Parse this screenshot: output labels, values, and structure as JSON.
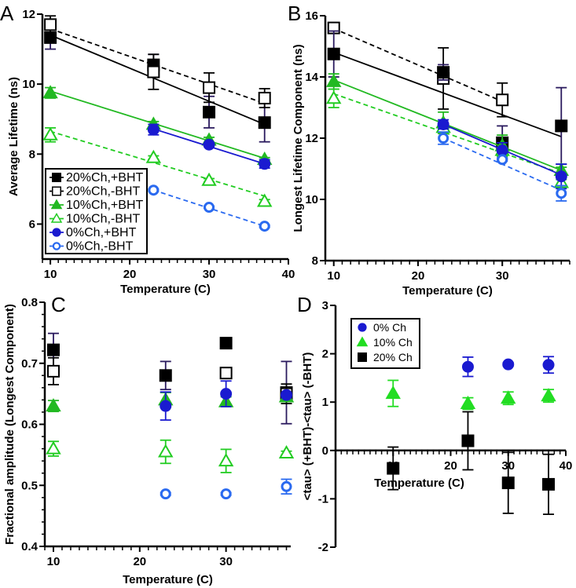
{
  "styles": {
    "20%Ch,+BHT": {
      "color": "#000000",
      "err": "#2a1a5e",
      "marker": "square",
      "filled": true,
      "dash": false
    },
    "20%Ch,-BHT": {
      "color": "#000000",
      "err": "#000000",
      "marker": "square",
      "filled": false,
      "dash": true
    },
    "10%Ch,+BHT": {
      "color": "#22b922",
      "err": "#22b922",
      "marker": "triangle",
      "filled": true,
      "dash": false
    },
    "10%Ch,-BHT": {
      "color": "#22cc22",
      "err": "#22cc22",
      "marker": "triangle",
      "filled": false,
      "dash": true
    },
    "0%Ch,+BHT": {
      "color": "#1a1ad0",
      "err": "#1a1ad0",
      "marker": "circle",
      "filled": true,
      "dash": false
    },
    "0%Ch,-BHT": {
      "color": "#2a6af0",
      "err": "#2a6af0",
      "marker": "circle",
      "filled": false,
      "dash": true
    },
    "0% Ch": {
      "color": "#1a1ad0",
      "err": "#1a1ad0",
      "marker": "circle",
      "filled": true
    },
    "10% Ch": {
      "color": "#22dd22",
      "err": "#22dd22",
      "marker": "triangle",
      "filled": true
    },
    "20% Ch": {
      "color": "#000000",
      "err": "#000000",
      "marker": "square",
      "filled": true
    }
  },
  "chart_data": [
    {
      "type": "scatter",
      "panel_label": "A",
      "xlabel": "Temperature (C)",
      "ylabel": "Average Lifetime (ns)",
      "xlim": [
        9,
        40
      ],
      "ylim": [
        5,
        12
      ],
      "xticks": [
        10,
        20,
        30,
        40
      ],
      "yticks": [
        6,
        8,
        10,
        12
      ],
      "legend": "bottom-left",
      "grid": false,
      "series": [
        {
          "name": "20%Ch,+BHT",
          "style": "20%Ch,+BHT",
          "x": [
            10,
            23,
            30,
            37
          ],
          "y": [
            11.33,
            10.55,
            9.2,
            8.9
          ],
          "err": [
            0.33,
            0.3,
            0.45,
            0.55
          ],
          "fit": {
            "x": [
              10,
              37
            ],
            "y": [
              11.4,
              8.85
            ]
          }
        },
        {
          "name": "20%Ch,-BHT",
          "style": "20%Ch,-BHT",
          "x": [
            10,
            23,
            30,
            37
          ],
          "y": [
            11.7,
            10.35,
            9.9,
            9.6
          ],
          "err": [
            0.25,
            0.5,
            0.42,
            0.27
          ],
          "fit": {
            "x": [
              10,
              37
            ],
            "y": [
              11.58,
              9.45
            ]
          }
        },
        {
          "name": "10%Ch,+BHT",
          "style": "10%Ch,+BHT",
          "x": [
            10,
            23,
            30,
            37
          ],
          "y": [
            9.75,
            8.85,
            8.4,
            7.85
          ],
          "err": [
            0.15,
            0.08,
            0.08,
            0.05
          ],
          "fit": {
            "x": [
              10,
              37
            ],
            "y": [
              9.8,
              7.88
            ]
          }
        },
        {
          "name": "10%Ch,-BHT",
          "style": "10%Ch,-BHT",
          "x": [
            10,
            23,
            30,
            37
          ],
          "y": [
            8.55,
            7.9,
            7.25,
            6.65
          ],
          "err": [
            0.2,
            0.05,
            0.05,
            0.05
          ],
          "fit": {
            "x": [
              10,
              37
            ],
            "y": [
              8.65,
              6.8
            ]
          }
        },
        {
          "name": "0%Ch,+BHT",
          "style": "0%Ch,+BHT",
          "x": [
            23,
            30,
            37
          ],
          "y": [
            8.7,
            8.27,
            7.72
          ],
          "err": [
            0.15,
            0.05,
            0.12
          ],
          "fit": {
            "x": [
              23,
              37
            ],
            "y": [
              8.72,
              7.72
            ]
          }
        },
        {
          "name": "0%Ch,-BHT",
          "style": "0%Ch,-BHT",
          "x": [
            23,
            30,
            37
          ],
          "y": [
            6.97,
            6.48,
            5.94
          ],
          "err": [
            0.03,
            0.03,
            0.03
          ],
          "fit": {
            "x": [
              23,
              37
            ],
            "y": [
              6.97,
              5.94
            ]
          }
        }
      ]
    },
    {
      "type": "scatter",
      "panel_label": "B",
      "xlabel": "Temperature (C)",
      "ylabel": "Longest Lifetime Component (ns)",
      "xlim": [
        9,
        38
      ],
      "ylim": [
        8,
        16
      ],
      "xticks": [
        10,
        20,
        30
      ],
      "yticks": [
        8,
        10,
        12,
        14,
        16
      ],
      "grid": false,
      "series": [
        {
          "style": "20%Ch,-BHT",
          "x": [
            10,
            23,
            30
          ],
          "y": [
            15.6,
            13.95,
            13.25
          ],
          "err": [
            0.05,
            1.0,
            0.55
          ],
          "fit": {
            "x": [
              10,
              30
            ],
            "y": [
              15.58,
              13.2
            ]
          }
        },
        {
          "style": "20%Ch,+BHT",
          "x": [
            10,
            23,
            30,
            37
          ],
          "y": [
            14.75,
            14.15,
            11.85,
            12.4
          ],
          "err": [
            0.75,
            0.25,
            0.55,
            1.25
          ],
          "fit": {
            "x": [
              10,
              37
            ],
            "y": [
              14.8,
              12.05
            ]
          }
        },
        {
          "style": "10%Ch,+BHT",
          "x": [
            10,
            23,
            30,
            37
          ],
          "y": [
            13.85,
            12.5,
            11.75,
            10.95
          ],
          "err": [
            0.25,
            0.35,
            0.35,
            0.1
          ],
          "fit": {
            "x": [
              10,
              37
            ],
            "y": [
              13.9,
              10.95
            ]
          }
        },
        {
          "style": "10%Ch,-BHT",
          "x": [
            10,
            23,
            30,
            37
          ],
          "y": [
            13.3,
            12.35,
            11.6,
            10.55
          ],
          "err": [
            0.3,
            0.1,
            0.1,
            0.1
          ],
          "fit": {
            "x": [
              10,
              37
            ],
            "y": [
              13.45,
              10.85
            ]
          }
        },
        {
          "style": "0%Ch,+BHT",
          "x": [
            23,
            30,
            37
          ],
          "y": [
            12.45,
            11.6,
            10.75
          ],
          "err": [
            0.15,
            0.25,
            0.4
          ],
          "fit": {
            "x": [
              23,
              37
            ],
            "y": [
              12.45,
              10.8
            ]
          }
        },
        {
          "style": "0%Ch,-BHT",
          "x": [
            23,
            30,
            37
          ],
          "y": [
            12.0,
            11.3,
            10.2
          ],
          "err": [
            0.2,
            0.05,
            0.25
          ],
          "fit": {
            "x": [
              23,
              37
            ],
            "y": [
              12.0,
              10.3
            ]
          }
        }
      ]
    },
    {
      "type": "scatter",
      "panel_label": "C",
      "xlabel": "Temperature (C)",
      "ylabel": "Fractional amplitude (Longest Component)",
      "xlim": [
        9,
        37.5
      ],
      "ylim": [
        0.4,
        0.8
      ],
      "xticks": [
        10,
        20,
        30
      ],
      "yticks": [
        0.4,
        0.5,
        0.6,
        0.7,
        0.8
      ],
      "grid": false,
      "series": [
        {
          "style": "20%Ch,+BHT",
          "x": [
            10,
            23,
            30,
            37
          ],
          "y": [
            0.722,
            0.68,
            0.733,
            0.652
          ],
          "err": [
            0.027,
            0.023,
            0.004,
            0.051
          ]
        },
        {
          "style": "20%Ch,-BHT",
          "x": [
            10,
            30,
            37
          ],
          "y": [
            0.687,
            0.684,
            0.65
          ],
          "err": [
            0.022,
            0.003,
            0.016
          ]
        },
        {
          "style": "10%Ch,+BHT",
          "x": [
            10,
            23,
            30,
            37
          ],
          "y": [
            0.63,
            0.64,
            0.637,
            0.645
          ],
          "err": [
            0.009,
            0.012,
            0.008,
            0.004
          ]
        },
        {
          "style": "10%Ch,-BHT",
          "x": [
            10,
            23,
            30,
            37
          ],
          "y": [
            0.56,
            0.555,
            0.54,
            0.553
          ],
          "err": [
            0.012,
            0.019,
            0.019,
            0.003
          ]
        },
        {
          "style": "0%Ch,+BHT",
          "x": [
            23,
            30,
            37
          ],
          "y": [
            0.63,
            0.65,
            0.648
          ],
          "err": [
            0.023,
            0.021,
            0.004
          ]
        },
        {
          "style": "0%Ch,-BHT",
          "x": [
            23,
            30,
            37
          ],
          "y": [
            0.486,
            0.486,
            0.498
          ],
          "err": [
            0.002,
            0.002,
            0.012
          ]
        }
      ]
    },
    {
      "type": "scatter",
      "panel_label": "D",
      "xlabel": "Temperature (C)",
      "ylabel": "<tau> (+BHT)-<tau> (-BHT)",
      "xlim": [
        0,
        40
      ],
      "ylim": [
        -2,
        3
      ],
      "xticks": [
        10,
        20,
        30,
        40
      ],
      "yticks": [
        -2,
        -1,
        0,
        1,
        2,
        3
      ],
      "legend": "top-left",
      "grid": false,
      "series": [
        {
          "name": "0% Ch",
          "style": "0% Ch",
          "x": [
            23,
            30,
            37
          ],
          "y": [
            1.73,
            1.78,
            1.77
          ],
          "err": [
            0.2,
            0.03,
            0.17
          ]
        },
        {
          "name": "10% Ch",
          "style": "10% Ch",
          "x": [
            10,
            23,
            30,
            37
          ],
          "y": [
            1.18,
            0.97,
            1.08,
            1.13
          ],
          "err": [
            0.27,
            0.12,
            0.13,
            0.13
          ]
        },
        {
          "name": "20% Ch",
          "style": "20% Ch",
          "x": [
            10,
            23,
            30,
            37
          ],
          "y": [
            -0.37,
            0.2,
            -0.67,
            -0.7
          ],
          "err": [
            0.44,
            0.6,
            0.63,
            0.62
          ]
        }
      ]
    }
  ]
}
